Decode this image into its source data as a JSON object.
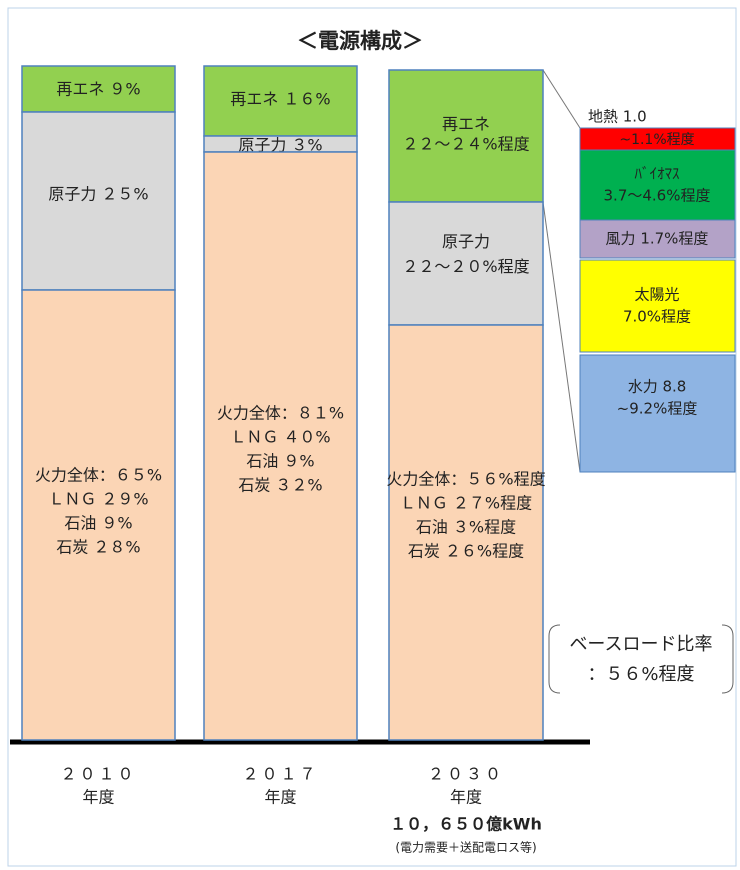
{
  "title": "＜電源構成＞",
  "columns": [
    {
      "year": "２０１０",
      "unit": "年度",
      "segments": [
        {
          "lines": [
            "再エネ ９%"
          ]
        },
        {
          "lines": [
            "原子力 ２５%"
          ]
        },
        {
          "lines": [
            "火力全体：６５%",
            "ＬＮＧ ２９%",
            "石油 ９%",
            "石炭 ２８%"
          ]
        }
      ]
    },
    {
      "year": "２０１７",
      "unit": "年度",
      "segments": [
        {
          "lines": [
            "再エネ １６%"
          ]
        },
        {
          "lines": [
            "原子力 ３%"
          ]
        },
        {
          "lines": [
            "火力全体：８１%",
            "ＬＮＧ ４０%",
            "石油 ９%",
            "石炭 ３２%"
          ]
        }
      ]
    },
    {
      "year": "２０３０",
      "unit": "年度",
      "segments": [
        {
          "lines": [
            "再エネ",
            "２２～２４%程度"
          ]
        },
        {
          "lines": [
            "原子力",
            "２２～２０%程度"
          ]
        },
        {
          "lines": [
            "火力全体：５６%程度",
            "ＬＮＧ ２７%程度",
            "石油 ３%程度",
            "石炭 ２６%程度"
          ]
        }
      ]
    }
  ],
  "total": "１０，６５０億kWh",
  "total_note": "(電力需要＋送配電ロス等)",
  "breakdown": [
    {
      "lines": [
        "地熱 1.0",
        "~1.1%程度"
      ]
    },
    {
      "lines": [
        "ﾊﾞｲｵﾏｽ",
        "3.7～4.6%程度"
      ]
    },
    {
      "lines": [
        "風力 1.7%程度"
      ]
    },
    {
      "lines": [
        "太陽光",
        "7.0%程度"
      ]
    },
    {
      "lines": [
        "水力 8.8",
        "~9.2%程度"
      ]
    }
  ],
  "baseload": [
    "ベースロード比率",
    "：５６%程度"
  ]
}
